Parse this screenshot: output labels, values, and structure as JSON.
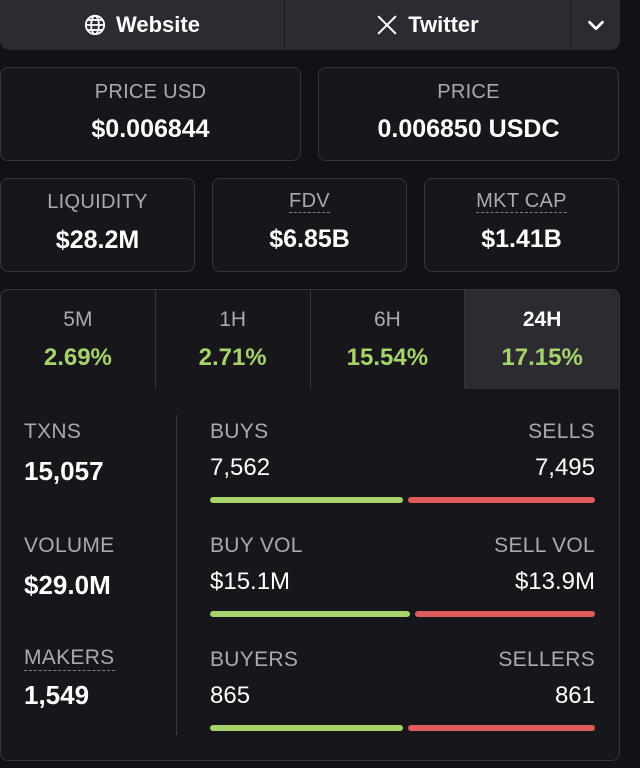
{
  "links": {
    "website": "Website",
    "twitter": "Twitter"
  },
  "prices": {
    "price_usd_label": "PRICE USD",
    "price_usd_value": "$0.006844",
    "price_label": "PRICE",
    "price_value": "0.006850 USDC"
  },
  "metrics": {
    "liquidity_label": "LIQUIDITY",
    "liquidity_value": "$28.2M",
    "fdv_label": "FDV",
    "fdv_value": "$6.85B",
    "mktcap_label": "MKT CAP",
    "mktcap_value": "$1.41B"
  },
  "timeframes": [
    {
      "label": "5M",
      "change": "2.69%"
    },
    {
      "label": "1H",
      "change": "2.71%"
    },
    {
      "label": "6H",
      "change": "15.54%"
    },
    {
      "label": "24H",
      "change": "17.15%"
    }
  ],
  "selected_timeframe": "24H",
  "stats": {
    "txns_label": "TXNS",
    "txns_value": "15,057",
    "volume_label": "VOLUME",
    "volume_value": "$29.0M",
    "makers_label": "MAKERS",
    "makers_value": "1,549",
    "buys_label": "BUYS",
    "buys_value": "7,562",
    "sells_label": "SELLS",
    "sells_value": "7,495",
    "buy_vol_label": "BUY VOL",
    "buy_vol_value": "$15.1M",
    "sell_vol_label": "SELL VOL",
    "sell_vol_value": "$13.9M",
    "buyers_label": "BUYERS",
    "buyers_value": "865",
    "sellers_label": "SELLERS",
    "sellers_value": "861",
    "buys_ratio": 0.502,
    "buy_vol_ratio": 0.52,
    "buyers_ratio": 0.501
  },
  "colors": {
    "positive": "#a6d36a",
    "negative": "#e05c5c",
    "background": "#121216"
  },
  "icons": {
    "website": "globe-icon",
    "twitter": "x-logo-icon",
    "more": "chevron-down-icon"
  }
}
